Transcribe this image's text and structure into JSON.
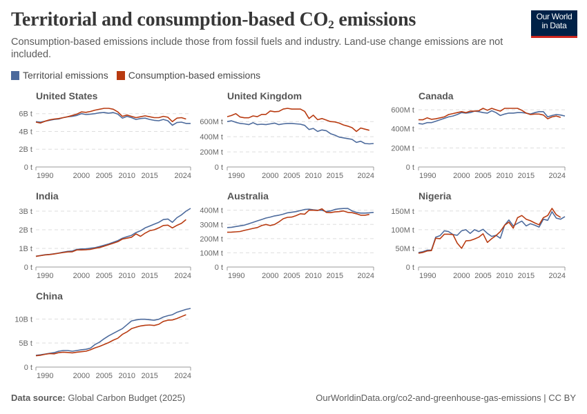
{
  "header": {
    "title_main": "Territorial and consumption-based CO",
    "title_sub": "2",
    "title_end": " emissions",
    "subtitle": "Consumption-based emissions include those from fossil fuels and industry. Land-use change emissions are not included.",
    "logo_line1": "Our World",
    "logo_line2": "in Data"
  },
  "legend": [
    {
      "label": "Territorial emissions",
      "color": "#4c6a9c"
    },
    {
      "label": "Consumption-based emissions",
      "color": "#b83a10"
    }
  ],
  "footer": {
    "source_label": "Data source:",
    "source_value": "Global Carbon Budget (2025)",
    "url": "OurWorldinData.org/co2-and-greenhouse-gas-emissions | CC BY"
  },
  "chart_data": {
    "type": "line",
    "layout": "small-multiples",
    "xlim": [
      1990,
      2024
    ],
    "x_ticks": [
      "1990",
      "2000",
      "2005",
      "2010",
      "2015",
      "2024"
    ],
    "grid": true,
    "years": [
      1990,
      1991,
      1992,
      1993,
      1994,
      1995,
      1996,
      1997,
      1998,
      1999,
      2000,
      2001,
      2002,
      2003,
      2004,
      2005,
      2006,
      2007,
      2008,
      2009,
      2010,
      2011,
      2012,
      2013,
      2014,
      2015,
      2016,
      2017,
      2018,
      2019,
      2020,
      2021,
      2022,
      2023,
      2024
    ],
    "panels": [
      {
        "title": "United States",
        "unit": "B t",
        "y_ticks": [
          0,
          2,
          4,
          6
        ],
        "y_tick_labels": [
          "0 t",
          "2B t",
          "4B t",
          "6B t"
        ],
        "territorial": [
          5.1,
          5.05,
          5.15,
          5.25,
          5.35,
          5.4,
          5.55,
          5.65,
          5.7,
          5.8,
          6.0,
          5.9,
          5.95,
          6.0,
          6.1,
          6.13,
          6.05,
          6.13,
          5.95,
          5.5,
          5.7,
          5.55,
          5.35,
          5.45,
          5.5,
          5.35,
          5.25,
          5.2,
          5.35,
          5.2,
          4.7,
          5.0,
          5.05,
          4.9,
          4.9
        ],
        "consumption": [
          5.05,
          4.95,
          5.15,
          5.3,
          5.4,
          5.45,
          5.55,
          5.65,
          5.8,
          5.95,
          6.2,
          6.15,
          6.25,
          6.4,
          6.5,
          6.6,
          6.6,
          6.5,
          6.2,
          5.7,
          5.85,
          5.7,
          5.55,
          5.65,
          5.75,
          5.65,
          5.55,
          5.55,
          5.7,
          5.6,
          5.1,
          5.5,
          5.55,
          5.4
        ]
      },
      {
        "title": "United Kingdom",
        "unit": "M t",
        "y_ticks": [
          0,
          200,
          400,
          600
        ],
        "y_tick_labels": [
          "0 t",
          "200M t",
          "400M t",
          "600M t"
        ],
        "territorial": [
          600,
          610,
          590,
          575,
          570,
          560,
          585,
          560,
          565,
          560,
          570,
          580,
          560,
          570,
          575,
          575,
          570,
          565,
          550,
          495,
          510,
          470,
          490,
          480,
          440,
          420,
          395,
          385,
          375,
          365,
          325,
          340,
          310,
          305,
          310
        ],
        "consumption": [
          665,
          680,
          705,
          660,
          650,
          650,
          675,
          665,
          695,
          695,
          740,
          730,
          735,
          765,
          775,
          765,
          765,
          765,
          735,
          640,
          685,
          625,
          640,
          620,
          600,
          595,
          580,
          555,
          540,
          520,
          470,
          515,
          500,
          485
        ]
      },
      {
        "title": "Canada",
        "unit": "M t",
        "y_ticks": [
          0,
          200,
          400,
          600
        ],
        "y_tick_labels": [
          "0 t",
          "200M t",
          "400M t",
          "600M t"
        ],
        "territorial": [
          455,
          450,
          465,
          465,
          480,
          495,
          510,
          525,
          535,
          550,
          570,
          565,
          570,
          585,
          580,
          570,
          565,
          590,
          570,
          540,
          555,
          565,
          565,
          570,
          570,
          565,
          555,
          570,
          580,
          580,
          525,
          540,
          550,
          545,
          535
        ],
        "consumption": [
          495,
          495,
          515,
          500,
          505,
          515,
          525,
          550,
          560,
          570,
          580,
          570,
          585,
          585,
          590,
          615,
          595,
          615,
          600,
          585,
          615,
          615,
          615,
          615,
          595,
          565,
          550,
          555,
          555,
          545,
          505,
          525,
          535,
          520
        ]
      },
      {
        "title": "India",
        "unit": "B t",
        "y_ticks": [
          0,
          1,
          2,
          3
        ],
        "y_tick_labels": [
          "0 t",
          "1B t",
          "2B t",
          "3B t"
        ],
        "territorial": [
          0.58,
          0.62,
          0.66,
          0.68,
          0.71,
          0.75,
          0.8,
          0.84,
          0.86,
          0.95,
          0.97,
          0.98,
          1.01,
          1.04,
          1.1,
          1.17,
          1.24,
          1.33,
          1.42,
          1.55,
          1.63,
          1.7,
          1.85,
          1.95,
          2.1,
          2.2,
          2.3,
          2.4,
          2.55,
          2.58,
          2.4,
          2.65,
          2.8,
          3.0,
          3.15
        ],
        "consumption": [
          0.57,
          0.61,
          0.65,
          0.67,
          0.7,
          0.74,
          0.78,
          0.81,
          0.82,
          0.92,
          0.92,
          0.93,
          0.95,
          1.0,
          1.05,
          1.12,
          1.2,
          1.28,
          1.36,
          1.5,
          1.55,
          1.6,
          1.78,
          1.65,
          1.82,
          1.95,
          2.0,
          2.1,
          2.23,
          2.25,
          2.1,
          2.24,
          2.35,
          2.55
        ]
      },
      {
        "title": "Australia",
        "unit": "M t",
        "y_ticks": [
          0,
          100,
          200,
          300,
          400
        ],
        "y_tick_labels": [
          "0 t",
          "100M t",
          "200M t",
          "300M t",
          "400M t"
        ],
        "territorial": [
          278,
          280,
          285,
          290,
          295,
          305,
          315,
          325,
          335,
          345,
          352,
          360,
          365,
          372,
          382,
          386,
          390,
          398,
          405,
          407,
          403,
          400,
          400,
          390,
          395,
          405,
          410,
          412,
          413,
          395,
          385,
          380,
          380,
          382,
          385
        ],
        "consumption": [
          245,
          246,
          248,
          250,
          258,
          265,
          272,
          278,
          292,
          300,
          292,
          300,
          318,
          340,
          350,
          352,
          362,
          375,
          372,
          400,
          400,
          398,
          410,
          385,
          383,
          388,
          390,
          395,
          385,
          383,
          375,
          365,
          365,
          370
        ]
      },
      {
        "title": "Nigeria",
        "unit": "M t",
        "y_ticks": [
          0,
          50,
          100,
          150
        ],
        "y_tick_labels": [
          "0 t",
          "50M t",
          "100M t",
          "150M t"
        ],
        "territorial": [
          39,
          41,
          45,
          45,
          80,
          84,
          97,
          95,
          87,
          85,
          97,
          100,
          90,
          100,
          95,
          101,
          90,
          82,
          85,
          77,
          112,
          126,
          110,
          117,
          123,
          110,
          116,
          112,
          107,
          128,
          125,
          148,
          131,
          128,
          135
        ],
        "consumption": [
          37,
          39,
          43,
          44,
          77,
          76,
          88,
          88,
          87,
          64,
          50,
          70,
          71,
          75,
          80,
          89,
          66,
          76,
          84,
          95,
          112,
          120,
          104,
          132,
          138,
          128,
          124,
          118,
          113,
          132,
          138,
          157,
          140,
          133
        ]
      },
      {
        "title": "China",
        "unit": "B t",
        "y_ticks": [
          0,
          5,
          10
        ],
        "y_tick_labels": [
          "0 t",
          "5B t",
          "10B t"
        ],
        "territorial": [
          2.45,
          2.55,
          2.7,
          2.85,
          3.0,
          3.3,
          3.45,
          3.45,
          3.3,
          3.45,
          3.6,
          3.7,
          3.95,
          4.7,
          5.2,
          5.9,
          6.5,
          7.0,
          7.5,
          8.0,
          8.8,
          9.6,
          9.8,
          9.95,
          9.95,
          9.85,
          9.75,
          9.95,
          10.4,
          10.7,
          10.9,
          11.4,
          11.7,
          12.0,
          12.2
        ],
        "consumption": [
          2.35,
          2.45,
          2.65,
          2.8,
          2.75,
          3.0,
          3.1,
          3.05,
          2.95,
          3.1,
          3.2,
          3.3,
          3.6,
          4.0,
          4.3,
          4.7,
          5.1,
          5.6,
          6.0,
          6.8,
          7.3,
          8.0,
          8.3,
          8.55,
          8.7,
          8.75,
          8.65,
          8.9,
          9.5,
          9.75,
          9.8,
          10.1,
          10.5,
          10.9
        ]
      }
    ]
  }
}
